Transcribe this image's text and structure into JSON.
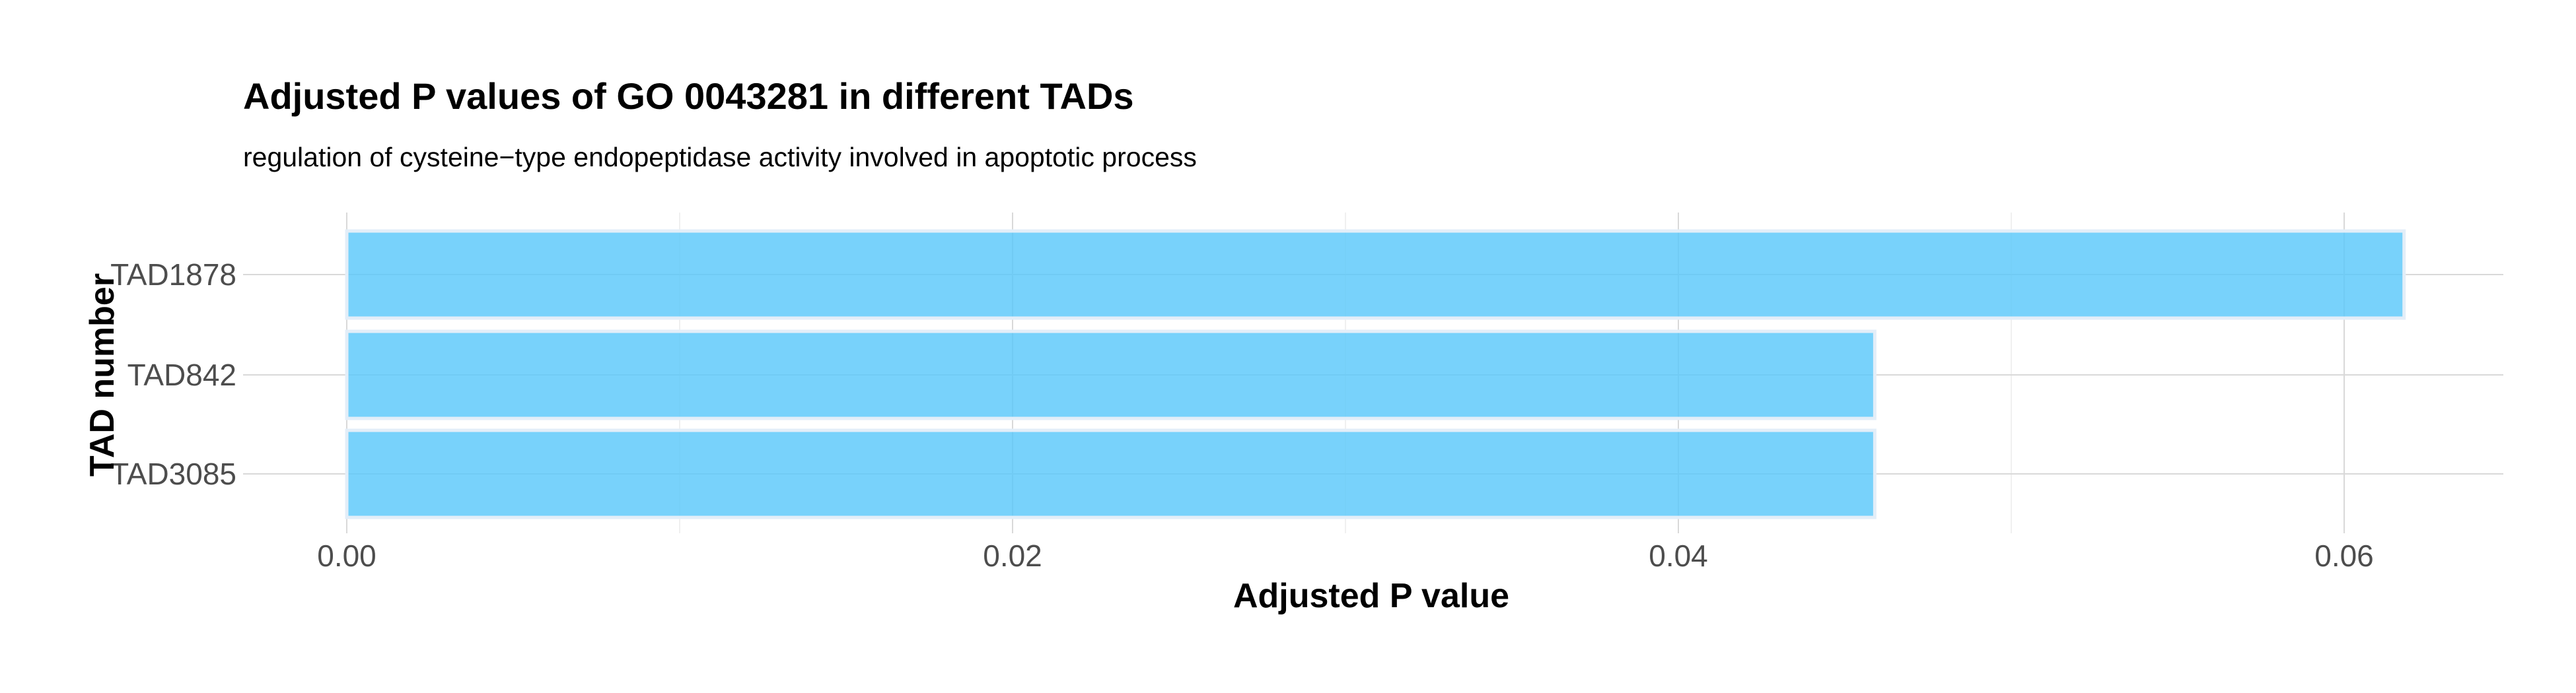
{
  "chart_data": {
    "type": "bar",
    "orientation": "horizontal",
    "title": "Adjusted P values of GO 0043281 in different TADs",
    "subtitle": "regulation of cysteine−type endopeptidase activity involved in apoptotic process",
    "xlabel": "Adjusted P value",
    "ylabel": "TAD number",
    "categories": [
      "TAD1878",
      "TAD842",
      "TAD3085"
    ],
    "values": [
      0.0618,
      0.0459,
      0.0459
    ],
    "xlim": [
      -0.003,
      0.065
    ],
    "xticks": [
      0.0,
      0.02,
      0.04,
      0.06
    ],
    "xtick_labels": [
      "0.00",
      "0.02",
      "0.04",
      "0.06"
    ],
    "grid": true,
    "legend": "none",
    "bar_color": "#5ac8fa"
  }
}
